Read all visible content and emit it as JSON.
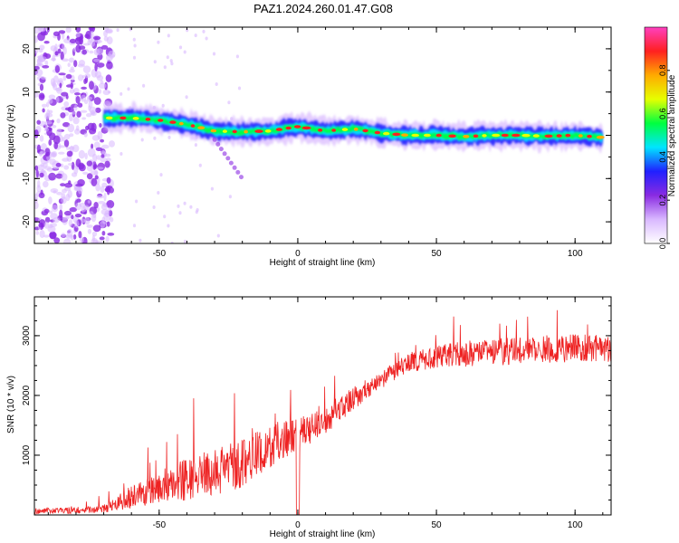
{
  "title": "PAZ1.2024.260.01.47.G08",
  "chart_data": [
    {
      "type": "heatmap",
      "xlabel": "Height of straight line (km)",
      "ylabel": "Frequency (Hz)",
      "xlim": [
        -95,
        113
      ],
      "ylim": [
        -25,
        25
      ],
      "xticks": [
        -50,
        0,
        50,
        100
      ],
      "yticks": [
        -20,
        -10,
        0,
        10,
        20
      ],
      "grid": false,
      "colorbar": {
        "label": "Normalized spectral amplitude",
        "range": [
          0,
          1
        ],
        "ticks": [
          0.0,
          0.2,
          0.4,
          0.6,
          0.8
        ],
        "colormap": [
          "#ffffff",
          "#d9b8ff",
          "#8a2be2",
          "#2020ff",
          "#00e5ff",
          "#00ff40",
          "#e6ff00",
          "#ffaa00",
          "#ff2020",
          "#ff40c0"
        ]
      },
      "ridge": {
        "x": [
          -70,
          -60,
          -50,
          -40,
          -30,
          -20,
          -10,
          0,
          10,
          20,
          30,
          40,
          50,
          60,
          70,
          80,
          90,
          100,
          110
        ],
        "frequency": [
          4.0,
          4.0,
          3.5,
          2.5,
          1.0,
          0.8,
          1.0,
          2.0,
          1.0,
          1.5,
          0.5,
          0.0,
          0.0,
          -0.3,
          0.0,
          0.0,
          -0.2,
          0.0,
          -0.5
        ]
      },
      "noise_region_x": [
        -95,
        -67
      ]
    },
    {
      "type": "line",
      "xlabel": "Height of straight line (km)",
      "ylabel": "SNR (10 * v/v)",
      "xlim": [
        -95,
        113
      ],
      "ylim": [
        0,
        3650
      ],
      "xticks": [
        -50,
        0,
        50,
        100
      ],
      "yticks": [
        1000,
        2000,
        3000
      ],
      "grid": false,
      "color": "#ee2222",
      "trend": {
        "x": [
          -95,
          -80,
          -70,
          -60,
          -50,
          -40,
          -30,
          -20,
          -10,
          0,
          10,
          20,
          30,
          40,
          50,
          60,
          70,
          80,
          90,
          100,
          113
        ],
        "y": [
          60,
          80,
          100,
          300,
          450,
          600,
          720,
          850,
          1150,
          1350,
          1600,
          1950,
          2250,
          2550,
          2650,
          2700,
          2720,
          2750,
          2760,
          2800,
          2780
        ]
      },
      "spike_amplitude": [
        80,
        100,
        120,
        350,
        450,
        650,
        700,
        750,
        650,
        550,
        450,
        350,
        250,
        300,
        350,
        400,
        420,
        420,
        420,
        420,
        400
      ]
    }
  ]
}
